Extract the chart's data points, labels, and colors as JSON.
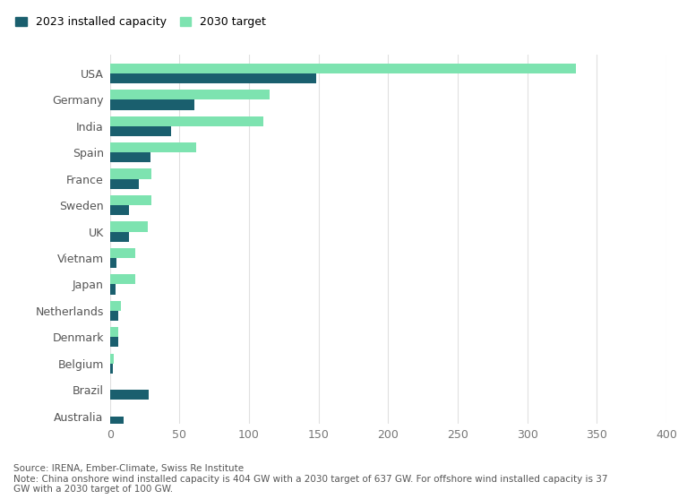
{
  "countries": [
    "USA",
    "Germany",
    "India",
    "Spain",
    "France",
    "Sweden",
    "UK",
    "Vietnam",
    "Japan",
    "Netherlands",
    "Denmark",
    "Belgium",
    "Brazil",
    "Australia"
  ],
  "installed_2023": [
    148,
    61,
    44,
    29,
    21,
    14,
    14,
    5,
    4,
    6,
    6,
    2,
    28,
    10
  ],
  "target_2030": [
    335,
    115,
    110,
    62,
    30,
    30,
    27,
    18,
    18,
    8,
    6,
    3,
    0,
    0
  ],
  "color_installed": "#1a5f6e",
  "color_target": "#7de3b0",
  "bg_color": "#ffffff",
  "grid_color": "#e0e0e0",
  "legend_installed": "2023 installed capacity",
  "legend_target": "2030 target",
  "xlim": [
    0,
    400
  ],
  "xticks": [
    0,
    50,
    100,
    150,
    200,
    250,
    300,
    350,
    400
  ],
  "footnote_line1": "Source: IRENA, Ember-Climate, Swiss Re Institute",
  "footnote_line2": "Note: China onshore wind installed capacity is 404 GW with a 2030 target of 637 GW. For offshore wind installed capacity is 37",
  "footnote_line3": "GW with a 2030 target of 100 GW.",
  "bar_height": 0.38,
  "figsize": [
    7.67,
    5.57
  ],
  "dpi": 100
}
